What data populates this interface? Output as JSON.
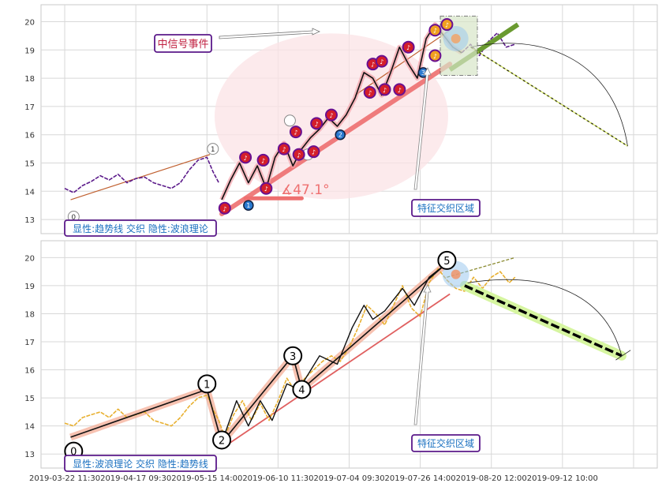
{
  "chart_data": [
    {
      "type": "line",
      "panel": "top",
      "ylim": [
        12.5,
        20.6
      ],
      "yticks": [
        13,
        14,
        15,
        16,
        17,
        18,
        19,
        20
      ],
      "grid": true,
      "price_segments": [
        {
          "color": "#5b1a8a",
          "points": [
            [
              0,
              14.1
            ],
            [
              3,
              13.95
            ],
            [
              6,
              14.2
            ],
            [
              9,
              14.35
            ],
            [
              12,
              14.55
            ],
            [
              15,
              14.4
            ],
            [
              18,
              14.6
            ],
            [
              21,
              14.3
            ],
            [
              24,
              14.45
            ],
            [
              27,
              14.5
            ],
            [
              30,
              14.3
            ],
            [
              33,
              14.2
            ],
            [
              36,
              14.1
            ],
            [
              39,
              14.3
            ],
            [
              42,
              14.75
            ],
            [
              45,
              15.1
            ],
            [
              48,
              15.2
            ],
            [
              50,
              14.7
            ],
            [
              52,
              14.3
            ]
          ]
        },
        {
          "color": "#111111",
          "points": [
            [
              53,
              13.7
            ],
            [
              56,
              14.4
            ],
            [
              59,
              15.0
            ],
            [
              62,
              14.3
            ],
            [
              65,
              14.9
            ],
            [
              68,
              14.1
            ],
            [
              71,
              15.2
            ],
            [
              74,
              15.7
            ],
            [
              77,
              14.9
            ],
            [
              80,
              15.5
            ],
            [
              83,
              15.9
            ],
            [
              86,
              16.2
            ],
            [
              89,
              16.6
            ],
            [
              92,
              16.3
            ],
            [
              95,
              16.7
            ],
            [
              98,
              17.3
            ],
            [
              101,
              18.2
            ],
            [
              104,
              18.0
            ],
            [
              107,
              17.4
            ],
            [
              110,
              18.2
            ],
            [
              113,
              19.1
            ],
            [
              116,
              18.5
            ],
            [
              119,
              18.0
            ],
            [
              122,
              19.4
            ],
            [
              125,
              19.9
            ],
            [
              128,
              19.5
            ],
            [
              131,
              19.1
            ],
            [
              134,
              18.9
            ]
          ]
        },
        {
          "color": "#5b1a8a",
          "points": [
            [
              134,
              18.9
            ],
            [
              137,
              19.2
            ],
            [
              140,
              18.8
            ],
            [
              143,
              19.3
            ],
            [
              146,
              19.6
            ],
            [
              149,
              19.1
            ],
            [
              152,
              19.2
            ]
          ]
        }
      ],
      "trend_band": {
        "from": [
          53,
          13.2
        ],
        "to": [
          130,
          18.5
        ],
        "color": "#ee7070"
      },
      "trend_line_thin": {
        "from": [
          2,
          13.7
        ],
        "to": [
          49,
          15.3
        ],
        "color": "#c06030"
      },
      "forecast": {
        "from": [
          137,
          19.1
        ],
        "to": [
          190,
          15.6
        ],
        "color": "#222200"
      },
      "green_band": {
        "from": [
          130,
          18.3
        ],
        "to": [
          153,
          19.9
        ],
        "color": "#6a9a30"
      },
      "angle_label": "∡47.1°",
      "angle_marker": {
        "from": [
          61,
          13.75
        ],
        "to": [
          80,
          13.75
        ]
      },
      "event_label": "中信号事件",
      "zone_label": "特征交织区域",
      "caption": "显性:趋势线 交织 隐性:波浪理论",
      "wave_markers": [
        {
          "label": "0",
          "x": 3,
          "y": 13.1,
          "style": "open"
        },
        {
          "label": "1",
          "x": 50,
          "y": 15.5,
          "style": "open"
        },
        {
          "label": "1",
          "x": 62,
          "y": 13.5,
          "style": "blue"
        },
        {
          "label": "2",
          "x": 93,
          "y": 16.0,
          "style": "blue"
        },
        {
          "label": "3",
          "x": 121,
          "y": 18.2,
          "style": "blue"
        },
        {
          "label": "",
          "x": 76,
          "y": 16.5,
          "style": "open"
        },
        {
          "label": "",
          "x": 82,
          "y": 15.3,
          "style": "open"
        }
      ],
      "event_markers": [
        {
          "x": 54,
          "y": 13.4,
          "color": "#d41f2a"
        },
        {
          "x": 61,
          "y": 15.2,
          "color": "#d41f2a"
        },
        {
          "x": 67,
          "y": 15.1,
          "color": "#d41f2a"
        },
        {
          "x": 68,
          "y": 14.1,
          "color": "#d41f2a"
        },
        {
          "x": 74,
          "y": 15.5,
          "color": "#d41f2a"
        },
        {
          "x": 78,
          "y": 16.1,
          "color": "#d41f2a"
        },
        {
          "x": 79,
          "y": 15.3,
          "color": "#d41f2a"
        },
        {
          "x": 84,
          "y": 15.4,
          "color": "#d41f2a"
        },
        {
          "x": 85,
          "y": 16.4,
          "color": "#d41f2a"
        },
        {
          "x": 90,
          "y": 16.7,
          "color": "#d41f2a"
        },
        {
          "x": 103,
          "y": 17.5,
          "color": "#d41f2a"
        },
        {
          "x": 104,
          "y": 18.5,
          "color": "#d41f2a"
        },
        {
          "x": 107,
          "y": 18.6,
          "color": "#d41f2a"
        },
        {
          "x": 108,
          "y": 17.6,
          "color": "#d41f2a"
        },
        {
          "x": 113,
          "y": 17.6,
          "color": "#d41f2a"
        },
        {
          "x": 116,
          "y": 19.1,
          "color": "#d41f2a"
        },
        {
          "x": 125,
          "y": 18.8,
          "color": "#f0a020"
        },
        {
          "x": 125,
          "y": 19.7,
          "color": "#f0a020"
        },
        {
          "x": 129,
          "y": 19.9,
          "color": "#f0a020"
        }
      ]
    },
    {
      "type": "line",
      "panel": "bottom",
      "ylim": [
        12.5,
        20.6
      ],
      "yticks": [
        13,
        14,
        15,
        16,
        17,
        18,
        19,
        20
      ],
      "grid": true,
      "price_points": [
        [
          0,
          14.1
        ],
        [
          3,
          14.0
        ],
        [
          6,
          14.3
        ],
        [
          9,
          14.4
        ],
        [
          12,
          14.5
        ],
        [
          15,
          14.3
        ],
        [
          18,
          14.6
        ],
        [
          21,
          14.3
        ],
        [
          24,
          14.4
        ],
        [
          27,
          14.5
        ],
        [
          30,
          14.2
        ],
        [
          33,
          14.1
        ],
        [
          36,
          14.0
        ],
        [
          39,
          14.3
        ],
        [
          42,
          14.7
        ],
        [
          45,
          15.0
        ],
        [
          48,
          15.1
        ],
        [
          50,
          14.6
        ],
        [
          52,
          14.2
        ],
        [
          54,
          13.6
        ],
        [
          57,
          14.4
        ],
        [
          60,
          14.9
        ],
        [
          63,
          14.2
        ],
        [
          66,
          14.8
        ],
        [
          69,
          14.2
        ],
        [
          72,
          14.9
        ],
        [
          75,
          15.7
        ],
        [
          78,
          15.2
        ],
        [
          81,
          15.7
        ],
        [
          84,
          16.0
        ],
        [
          87,
          16.3
        ],
        [
          90,
          16.5
        ],
        [
          93,
          16.3
        ],
        [
          96,
          16.8
        ],
        [
          99,
          17.5
        ],
        [
          102,
          18.3
        ],
        [
          105,
          18.0
        ],
        [
          108,
          17.6
        ],
        [
          111,
          18.3
        ],
        [
          114,
          19.0
        ],
        [
          117,
          18.2
        ],
        [
          120,
          17.9
        ],
        [
          123,
          19.1
        ],
        [
          126,
          19.6
        ],
        [
          129,
          19.2
        ],
        [
          132,
          18.9
        ],
        [
          135,
          18.8
        ],
        [
          138,
          19.3
        ],
        [
          141,
          18.9
        ],
        [
          144,
          19.3
        ],
        [
          147,
          19.5
        ],
        [
          150,
          19.1
        ],
        [
          152,
          19.3
        ]
      ],
      "price_color": "#e8b030",
      "wave_path": [
        [
          2,
          13.6
        ],
        [
          48,
          15.3
        ],
        [
          53,
          13.4
        ],
        [
          77,
          16.5
        ],
        [
          80,
          15.3
        ],
        [
          129,
          19.8
        ]
      ],
      "zigzag": [
        [
          53,
          13.4
        ],
        [
          58,
          14.9
        ],
        [
          62,
          14.0
        ],
        [
          66,
          14.9
        ],
        [
          70,
          14.2
        ],
        [
          75,
          15.5
        ],
        [
          79,
          15.3
        ],
        [
          86,
          16.5
        ],
        [
          92,
          16.2
        ],
        [
          97,
          17.5
        ],
        [
          101,
          18.3
        ],
        [
          104,
          17.8
        ],
        [
          108,
          18.1
        ],
        [
          114,
          18.9
        ],
        [
          118,
          18.3
        ],
        [
          123,
          19.3
        ],
        [
          129,
          19.8
        ]
      ],
      "trend_line": {
        "from": [
          53,
          13.2
        ],
        "to": [
          130,
          18.7
        ],
        "color": "#e06060"
      },
      "forecast": {
        "from": [
          135,
          19.0
        ],
        "to": [
          188,
          16.5
        ]
      },
      "olive_dash": {
        "from": [
          129,
          19.3
        ],
        "to": [
          152,
          20.0
        ]
      },
      "zone_label": "特征交织区域",
      "caption": "显性:波浪理论 交织 隐性:趋势线",
      "wave_labels": [
        {
          "label": "0",
          "x": 3,
          "y": 13.1
        },
        {
          "label": "1",
          "x": 48,
          "y": 15.5
        },
        {
          "label": "2",
          "x": 53,
          "y": 13.5
        },
        {
          "label": "3",
          "x": 77,
          "y": 16.5
        },
        {
          "label": "4",
          "x": 80,
          "y": 15.3
        },
        {
          "label": "5",
          "x": 129,
          "y": 19.9
        }
      ]
    }
  ],
  "x_ticks": [
    {
      "pos": 0,
      "label": "2019-03-22 11:30"
    },
    {
      "pos": 24,
      "label": "2019-04-17 09:30"
    },
    {
      "pos": 48,
      "label": "2019-05-15 14:00"
    },
    {
      "pos": 72,
      "label": "2019-06-10 11:30"
    },
    {
      "pos": 96,
      "label": "2019-07-04 09:30"
    },
    {
      "pos": 120,
      "label": "2019-07-26 14:00"
    },
    {
      "pos": 144,
      "label": "2019-08-20 12:00"
    },
    {
      "pos": 168,
      "label": "2019-09-12 10:00"
    }
  ],
  "x_range": [
    -8,
    200
  ]
}
